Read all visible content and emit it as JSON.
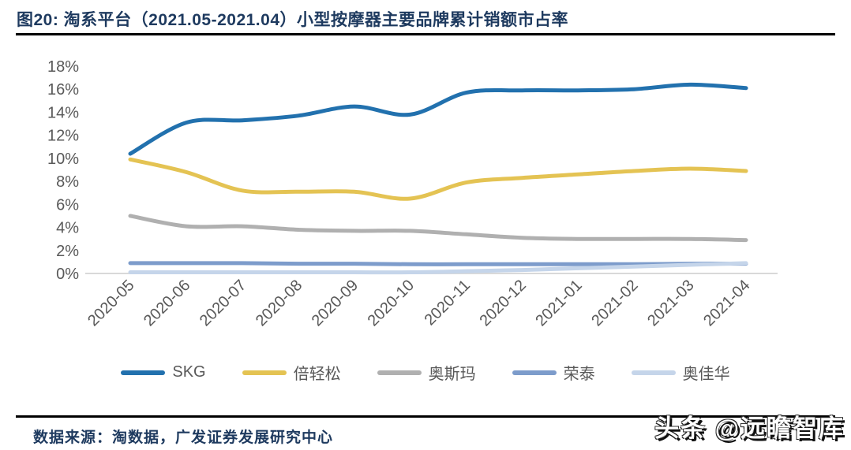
{
  "figure": {
    "title": "图20:  淘系平台（2021.05-2021.04）小型按摩器主要品牌累计销额市占率",
    "source_note": "数据来源：淘数据，广发证券发展研究中心",
    "watermark": "头条 @远瞻智库"
  },
  "colors": {
    "title_text": "#1E3A5F",
    "axis_text": "#595959",
    "baseline": "#D9D9D9",
    "rule": "#000000"
  },
  "chart_data": {
    "type": "line",
    "title": "淘系平台（2021.05-2021.04）小型按摩器主要品牌累计销额市占率",
    "x": [
      "2020-05",
      "2020-06",
      "2020-07",
      "2020-08",
      "2020-09",
      "2020-10",
      "2020-11",
      "2020-12",
      "2021-01",
      "2021-02",
      "2021-03",
      "2021-04"
    ],
    "series": [
      {
        "name": "SKG",
        "color": "#2271AE",
        "values": [
          10.4,
          13.1,
          13.3,
          13.7,
          14.5,
          13.8,
          15.7,
          15.9,
          15.9,
          16.0,
          16.4,
          16.1
        ]
      },
      {
        "name": "倍轻松",
        "color": "#E4C353",
        "values": [
          9.9,
          8.8,
          7.2,
          7.1,
          7.1,
          6.5,
          7.9,
          8.3,
          8.6,
          8.9,
          9.1,
          8.9
        ]
      },
      {
        "name": "奥斯玛",
        "color": "#B0B0B0",
        "values": [
          5.0,
          4.1,
          4.1,
          3.8,
          3.7,
          3.7,
          3.4,
          3.1,
          3.0,
          3.0,
          3.0,
          2.9
        ]
      },
      {
        "name": "荣泰",
        "color": "#7D9CCB",
        "values": [
          0.9,
          0.9,
          0.9,
          0.85,
          0.85,
          0.8,
          0.8,
          0.8,
          0.8,
          0.8,
          0.85,
          0.85
        ]
      },
      {
        "name": "奥佳华",
        "color": "#C5D5EA",
        "values": [
          0.1,
          0.1,
          0.1,
          0.1,
          0.1,
          0.1,
          0.2,
          0.3,
          0.45,
          0.6,
          0.75,
          0.9
        ]
      }
    ],
    "ylim": [
      0,
      18
    ],
    "ytick_step": 2,
    "ytick_format": "percent",
    "grid": false,
    "legend_position": "bottom"
  }
}
